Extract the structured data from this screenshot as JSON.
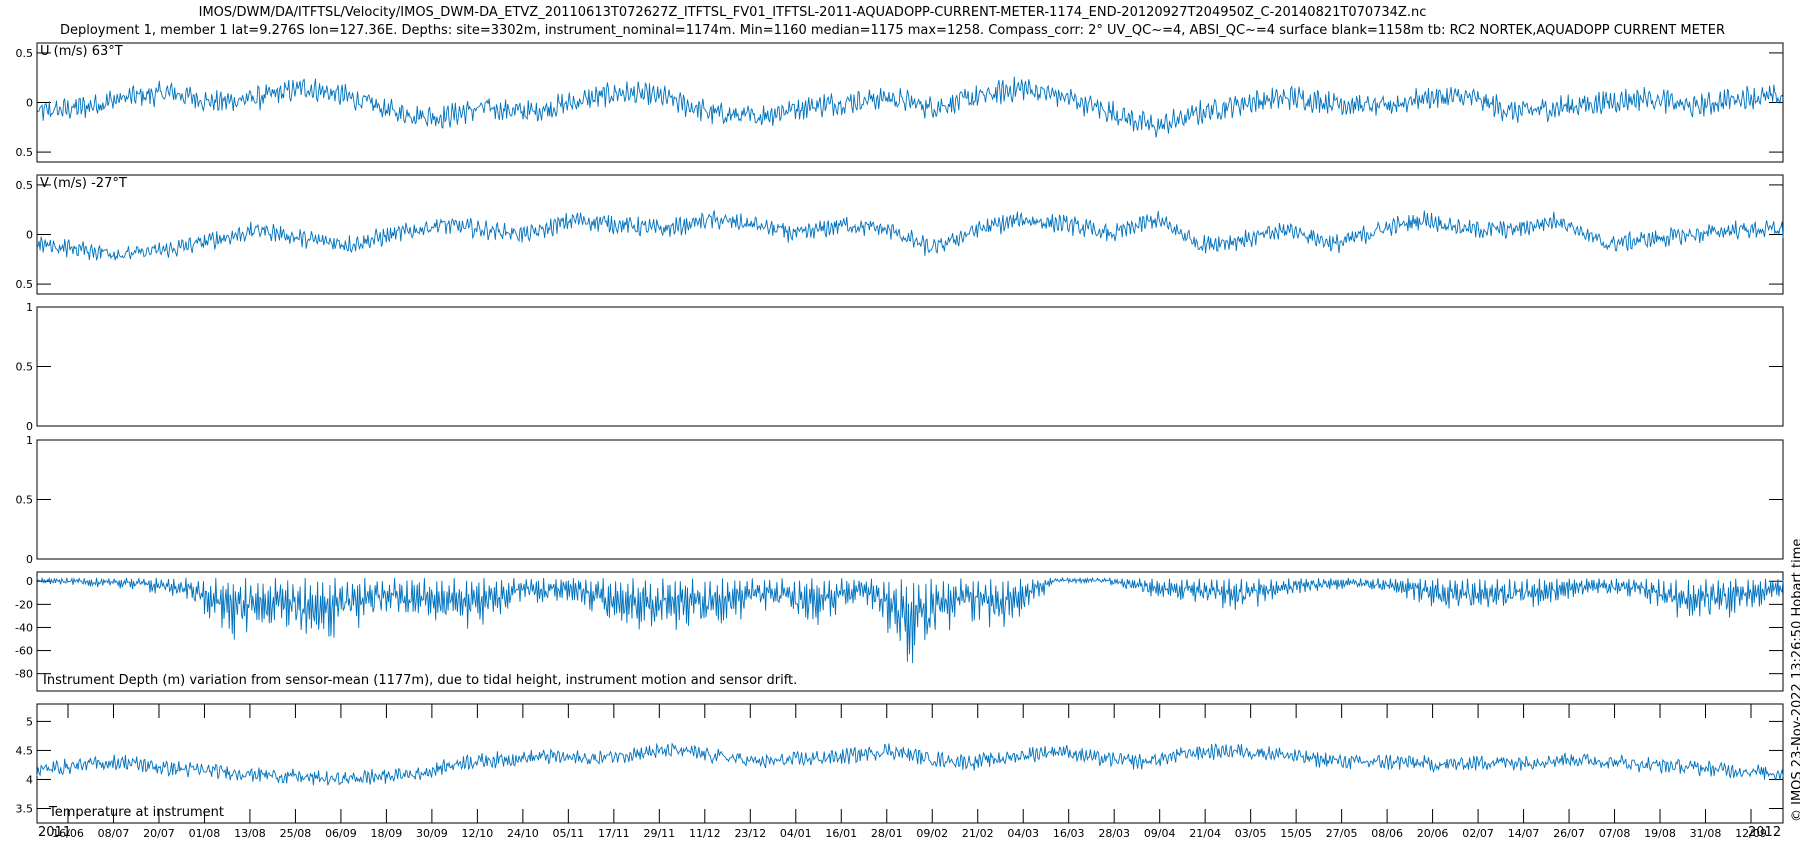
{
  "header": {
    "title_line1": "IMOS/DWM/DA/ITFTSL/Velocity/IMOS_DWM-DA_ETVZ_20110613T072627Z_ITFTSL_FV01_ITFTSL-2011-AQUADOPP-CURRENT-METER-1174_END-20120927T204950Z_C-20140821T070734Z.nc",
    "title_line2": "Deployment 1, member 1 lat=9.276S lon=127.36E. Depths: site=3302m, instrument_nominal=1174m. Min=1160 median=1175 max=1258. Compass_corr: 2° UV_QC~=4, ABSI_QC~=4 surface blank=1158m tb: RC2 NORTEK,AQUADOPP CURRENT METER",
    "credit": "© IMOS 23-Nov-2022 13:26:50 Hobart time"
  },
  "chart_data": [
    {
      "type": "line",
      "label": "U (m/s) 63°T",
      "ytick_labels": [
        "0.5",
        "0",
        "0.5"
      ],
      "ylim": [
        -0.6,
        0.6
      ],
      "color": "#0072BD",
      "series": [
        {
          "x_start": "2011-06-13",
          "x_end": "2012-09-27",
          "envelope_mean": [
            -0.1,
            -0.05,
            0.05,
            0.1,
            0.0,
            0.05,
            0.15,
            0.05,
            -0.1,
            -0.15,
            -0.05,
            -0.1,
            0.0,
            0.1,
            0.05,
            -0.1,
            -0.15,
            -0.05,
            0.0,
            0.05,
            -0.05,
            0.05,
            0.15,
            0.05,
            -0.1,
            -0.25,
            -0.1,
            0.0,
            0.05,
            0.0,
            -0.05,
            0.05,
            0.05,
            -0.1,
            -0.05,
            0.0,
            0.05,
            -0.05,
            0.05,
            0.05
          ],
          "noise_amplitude": 0.09
        }
      ]
    },
    {
      "type": "line",
      "label": "V (m/s) -27°T",
      "ytick_labels": [
        "0.5",
        "0",
        "0.5"
      ],
      "ylim": [
        -0.6,
        0.6
      ],
      "color": "#0072BD",
      "series": [
        {
          "x_start": "2011-06-13",
          "x_end": "2012-09-27",
          "envelope_mean": [
            -0.1,
            -0.15,
            -0.2,
            -0.15,
            -0.05,
            0.05,
            -0.05,
            -0.1,
            0.0,
            0.1,
            0.05,
            0.0,
            0.15,
            0.1,
            0.05,
            0.15,
            0.1,
            0.0,
            0.1,
            0.05,
            -0.15,
            0.05,
            0.15,
            0.1,
            0.0,
            0.15,
            -0.1,
            -0.05,
            0.05,
            -0.1,
            0.05,
            0.15,
            0.05,
            0.05,
            0.15,
            -0.1,
            -0.05,
            0.0,
            0.05,
            0.05
          ],
          "noise_amplitude": 0.07
        }
      ]
    },
    {
      "type": "line",
      "label": "",
      "ytick_labels": [
        "1",
        "0.5",
        "0"
      ],
      "ylim": [
        0,
        1
      ],
      "series": []
    },
    {
      "type": "line",
      "label": "",
      "ytick_labels": [
        "1",
        "0.5",
        "0"
      ],
      "ylim": [
        0,
        1
      ],
      "series": []
    },
    {
      "type": "line",
      "label": "Instrument Depth (m) variation from sensor-mean (1177m), due to tidal height, instrument motion and sensor drift.",
      "ytick_labels": [
        "0",
        "-20",
        "-40",
        "-60",
        "-80"
      ],
      "ylim": [
        -95,
        8
      ],
      "color": "#0072BD",
      "series": [
        {
          "x_start": "2011-06-13",
          "x_end": "2012-09-27",
          "spike_depths": [
            -5,
            -8,
            -10,
            -20,
            -55,
            -45,
            -60,
            -35,
            -40,
            -50,
            -25,
            -20,
            -45,
            -50,
            -45,
            -30,
            -45,
            -20,
            -80,
            -40,
            -50,
            -5,
            -5,
            -20,
            -25,
            -30,
            -15,
            -10,
            -15,
            -30,
            -35,
            -25,
            -15,
            -20,
            -45,
            -35,
            -20
          ]
        }
      ]
    },
    {
      "type": "line",
      "label": "Temperature at instrument",
      "ytick_labels": [
        "5",
        "4.5",
        "4",
        "3.5"
      ],
      "ylim": [
        3.25,
        5.3
      ],
      "color": "#0072BD",
      "series": [
        {
          "x_start": "2011-06-13",
          "x_end": "2012-09-27",
          "envelope_mean": [
            4.15,
            4.25,
            4.3,
            4.2,
            4.15,
            4.1,
            4.05,
            4.0,
            4.05,
            4.1,
            4.3,
            4.35,
            4.4,
            4.35,
            4.45,
            4.5,
            4.4,
            4.3,
            4.35,
            4.4,
            4.5,
            4.35,
            4.3,
            4.4,
            4.5,
            4.35,
            4.3,
            4.45,
            4.5,
            4.45,
            4.35,
            4.3,
            4.3,
            4.25,
            4.3,
            4.3,
            4.35,
            4.3,
            4.25,
            4.2,
            4.15,
            4.1
          ],
          "noise_amplitude": 0.1
        }
      ]
    }
  ],
  "xaxis": {
    "tick_labels": [
      "16/06",
      "08/07",
      "20/07",
      "01/08",
      "13/08",
      "25/08",
      "06/09",
      "18/09",
      "30/09",
      "12/10",
      "24/10",
      "05/11",
      "17/11",
      "29/11",
      "11/12",
      "23/12",
      "04/01",
      "16/01",
      "28/01",
      "09/02",
      "21/02",
      "04/03",
      "16/03",
      "28/03",
      "09/04",
      "21/04",
      "03/05",
      "15/05",
      "27/05",
      "08/06",
      "20/06",
      "02/07",
      "14/07",
      "26/07",
      "07/08",
      "19/08",
      "31/08",
      "12/09"
    ],
    "year_start": "2011",
    "year_end": "2012"
  }
}
